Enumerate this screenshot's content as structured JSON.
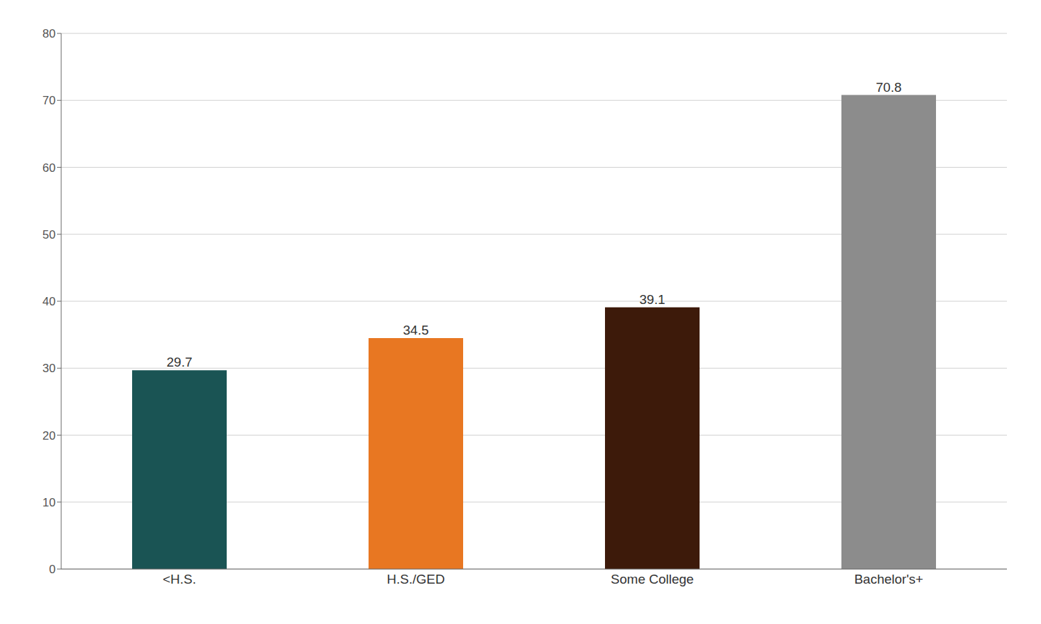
{
  "chart_data": {
    "type": "bar",
    "categories": [
      "<H.S.",
      "H.S./GED",
      "Some College",
      "Bachelor's+"
    ],
    "values": [
      29.7,
      34.5,
      39.1,
      70.8
    ],
    "colors": [
      "#1a5454",
      "#e87722",
      "#3d1a0a",
      "#8c8c8c"
    ],
    "ylim": [
      0,
      80
    ],
    "yticks": [
      0,
      10,
      20,
      30,
      40,
      50,
      60,
      70,
      80
    ],
    "grid": true,
    "data_labels": true
  }
}
